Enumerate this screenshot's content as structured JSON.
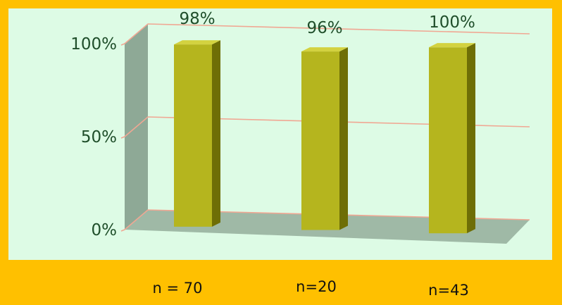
{
  "chart_data": {
    "type": "bar",
    "categories": [
      "n = 70",
      "n=20",
      "n=43"
    ],
    "values": [
      98,
      96,
      100
    ],
    "data_labels": [
      "98%",
      "96%",
      "100%"
    ],
    "ylim": [
      0,
      100
    ],
    "yticks": [
      "0%",
      "50%",
      "100%"
    ],
    "grid": true,
    "style": "3d",
    "colors": {
      "background": "#FFC000",
      "plot_area": "#DDFBE5",
      "bar": "#B5B51E",
      "gridline": "#F0A793",
      "text": "#1F4E2A"
    }
  }
}
